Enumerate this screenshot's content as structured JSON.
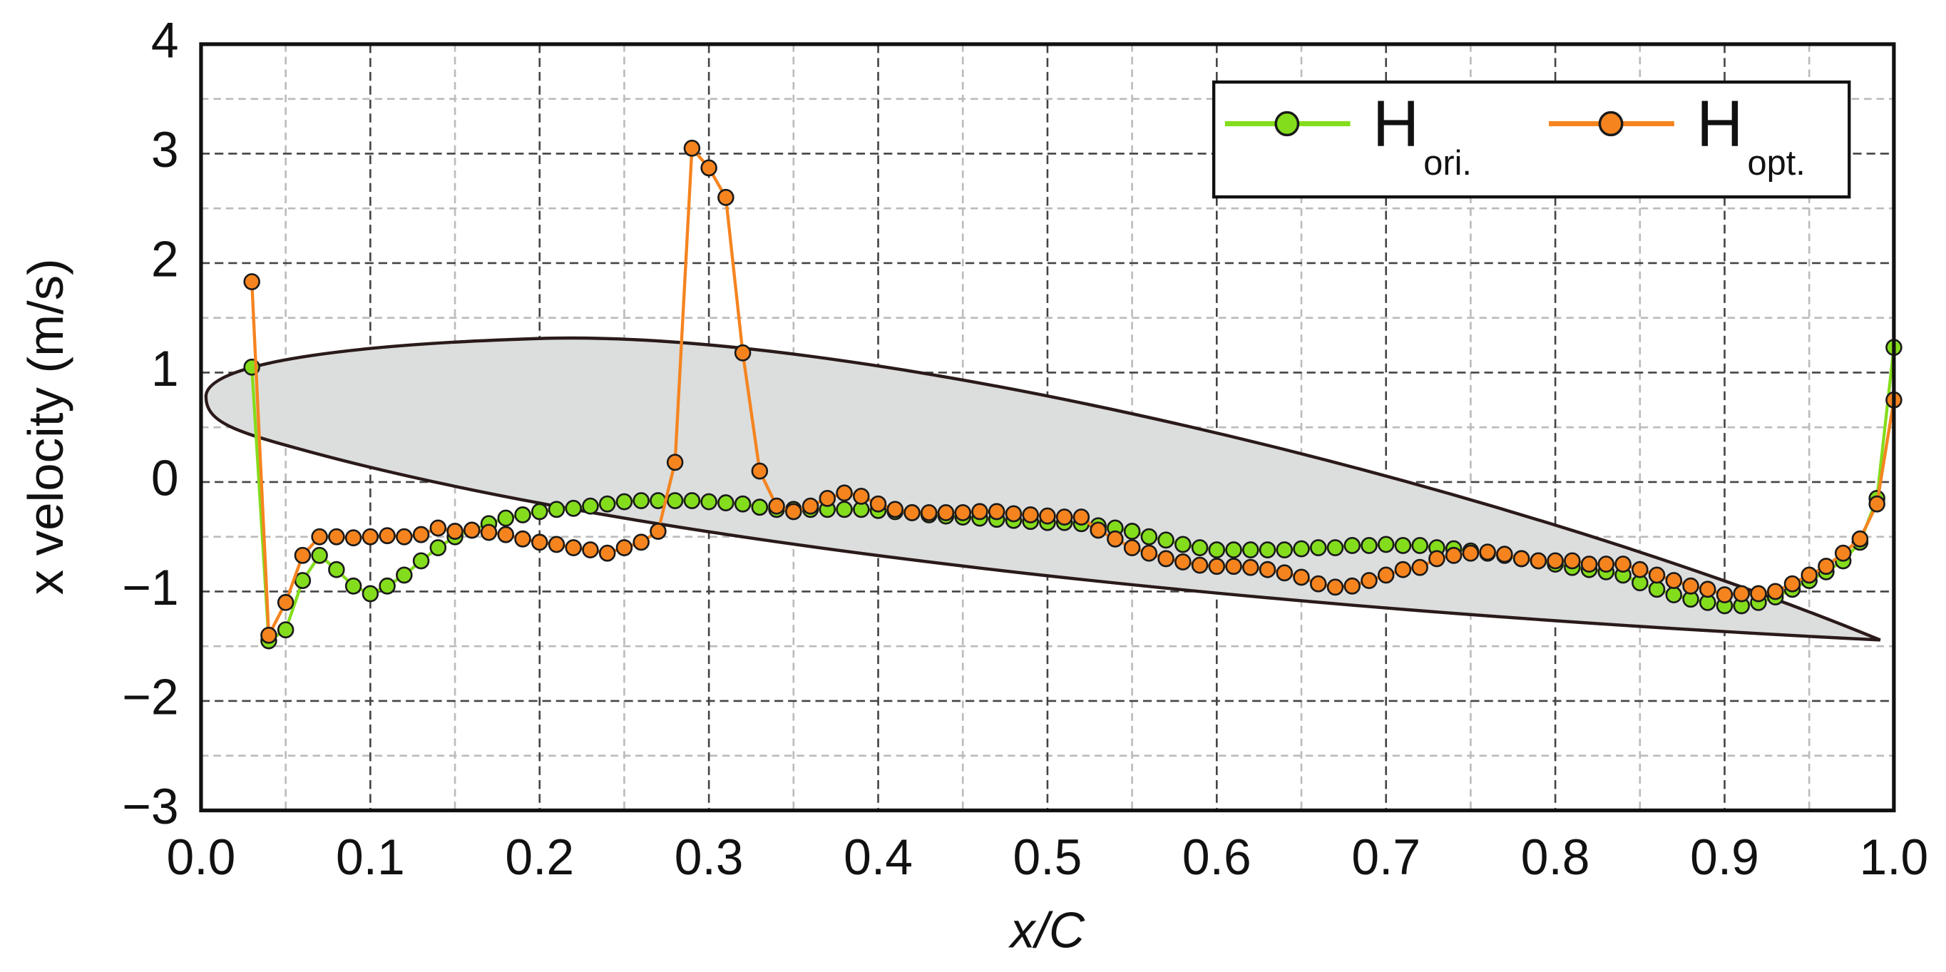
{
  "chart_data": {
    "type": "line",
    "x_label": "x/C",
    "y_label": "x velocity (m/s)",
    "xlim": [
      0.0,
      1.0
    ],
    "ylim": [
      -3,
      4
    ],
    "xticks": [
      {
        "value": 0.0,
        "label": "0.0"
      },
      0.1,
      0.2,
      0.3,
      0.4,
      0.5,
      0.6,
      0.7,
      0.8,
      0.9,
      {
        "value": 1.0,
        "label": "1.0"
      }
    ],
    "yticks": [
      {
        "value": -3,
        "label": "−3"
      },
      {
        "value": -2,
        "label": "−2"
      },
      {
        "value": -1,
        "label": "−1"
      },
      0,
      1,
      2,
      3,
      4
    ],
    "xminor": [
      0.05,
      0.15,
      0.25,
      0.35,
      0.45,
      0.55,
      0.65,
      0.75,
      0.85,
      0.95
    ],
    "yminor": [
      -2.5,
      -1.5,
      -0.5,
      0.5,
      1.5,
      2.5,
      3.5
    ],
    "grid": true,
    "legend": "upper right",
    "x": [
      0.03,
      0.04,
      0.05,
      0.06,
      0.07,
      0.08,
      0.09,
      0.1,
      0.11,
      0.12,
      0.13,
      0.14,
      0.15,
      0.16,
      0.17,
      0.18,
      0.19,
      0.2,
      0.21,
      0.22,
      0.23,
      0.24,
      0.25,
      0.26,
      0.27,
      0.28,
      0.29,
      0.3,
      0.31,
      0.32,
      0.33,
      0.34,
      0.35,
      0.36,
      0.37,
      0.38,
      0.39,
      0.4,
      0.41,
      0.42,
      0.43,
      0.44,
      0.45,
      0.46,
      0.47,
      0.48,
      0.49,
      0.5,
      0.51,
      0.52,
      0.53,
      0.54,
      0.55,
      0.56,
      0.57,
      0.58,
      0.59,
      0.6,
      0.61,
      0.62,
      0.63,
      0.64,
      0.65,
      0.66,
      0.67,
      0.68,
      0.69,
      0.7,
      0.71,
      0.72,
      0.73,
      0.74,
      0.75,
      0.76,
      0.77,
      0.78,
      0.79,
      0.8,
      0.81,
      0.82,
      0.83,
      0.84,
      0.85,
      0.86,
      0.87,
      0.88,
      0.89,
      0.9,
      0.91,
      0.92,
      0.93,
      0.94,
      0.95,
      0.96,
      0.97,
      0.98,
      0.99,
      1.0
    ],
    "series": [
      {
        "name": "H",
        "name_subscript": "ori.",
        "color": "#84dd1c",
        "values": [
          1.05,
          -1.45,
          -1.35,
          -0.9,
          -0.67,
          -0.8,
          -0.95,
          -1.02,
          -0.95,
          -0.85,
          -0.72,
          -0.6,
          -0.5,
          -0.44,
          -0.38,
          -0.33,
          -0.3,
          -0.27,
          -0.25,
          -0.24,
          -0.22,
          -0.2,
          -0.18,
          -0.17,
          -0.17,
          -0.17,
          -0.17,
          -0.18,
          -0.19,
          -0.2,
          -0.23,
          -0.25,
          -0.25,
          -0.25,
          -0.25,
          -0.25,
          -0.25,
          -0.26,
          -0.27,
          -0.28,
          -0.3,
          -0.31,
          -0.32,
          -0.33,
          -0.34,
          -0.35,
          -0.36,
          -0.37,
          -0.37,
          -0.38,
          -0.4,
          -0.42,
          -0.45,
          -0.5,
          -0.53,
          -0.57,
          -0.6,
          -0.62,
          -0.62,
          -0.62,
          -0.62,
          -0.62,
          -0.61,
          -0.6,
          -0.6,
          -0.58,
          -0.58,
          -0.57,
          -0.58,
          -0.58,
          -0.6,
          -0.61,
          -0.63,
          -0.65,
          -0.67,
          -0.7,
          -0.72,
          -0.75,
          -0.78,
          -0.8,
          -0.82,
          -0.85,
          -0.92,
          -0.98,
          -1.03,
          -1.07,
          -1.1,
          -1.13,
          -1.13,
          -1.1,
          -1.05,
          -0.98,
          -0.9,
          -0.82,
          -0.72,
          -0.55,
          -0.15,
          1.23
        ]
      },
      {
        "name": "H",
        "name_subscript": "opt.",
        "color": "#f5841f",
        "values": [
          1.83,
          -1.4,
          -1.1,
          -0.67,
          -0.5,
          -0.5,
          -0.51,
          -0.5,
          -0.49,
          -0.5,
          -0.48,
          -0.42,
          -0.45,
          -0.44,
          -0.46,
          -0.48,
          -0.52,
          -0.55,
          -0.57,
          -0.6,
          -0.62,
          -0.65,
          -0.6,
          -0.55,
          -0.45,
          0.18,
          3.05,
          2.87,
          2.6,
          1.18,
          0.1,
          -0.22,
          -0.27,
          -0.22,
          -0.15,
          -0.1,
          -0.13,
          -0.2,
          -0.25,
          -0.28,
          -0.28,
          -0.28,
          -0.28,
          -0.27,
          -0.27,
          -0.29,
          -0.3,
          -0.31,
          -0.32,
          -0.32,
          -0.44,
          -0.52,
          -0.6,
          -0.65,
          -0.7,
          -0.73,
          -0.76,
          -0.77,
          -0.77,
          -0.78,
          -0.8,
          -0.83,
          -0.87,
          -0.93,
          -0.96,
          -0.95,
          -0.9,
          -0.85,
          -0.8,
          -0.78,
          -0.7,
          -0.67,
          -0.65,
          -0.64,
          -0.66,
          -0.7,
          -0.72,
          -0.72,
          -0.72,
          -0.75,
          -0.75,
          -0.75,
          -0.8,
          -0.85,
          -0.9,
          -0.95,
          -0.98,
          -1.03,
          -1.02,
          -1.02,
          -1.0,
          -0.93,
          -0.85,
          -0.77,
          -0.65,
          -0.52,
          -0.2,
          0.75
        ]
      }
    ]
  }
}
